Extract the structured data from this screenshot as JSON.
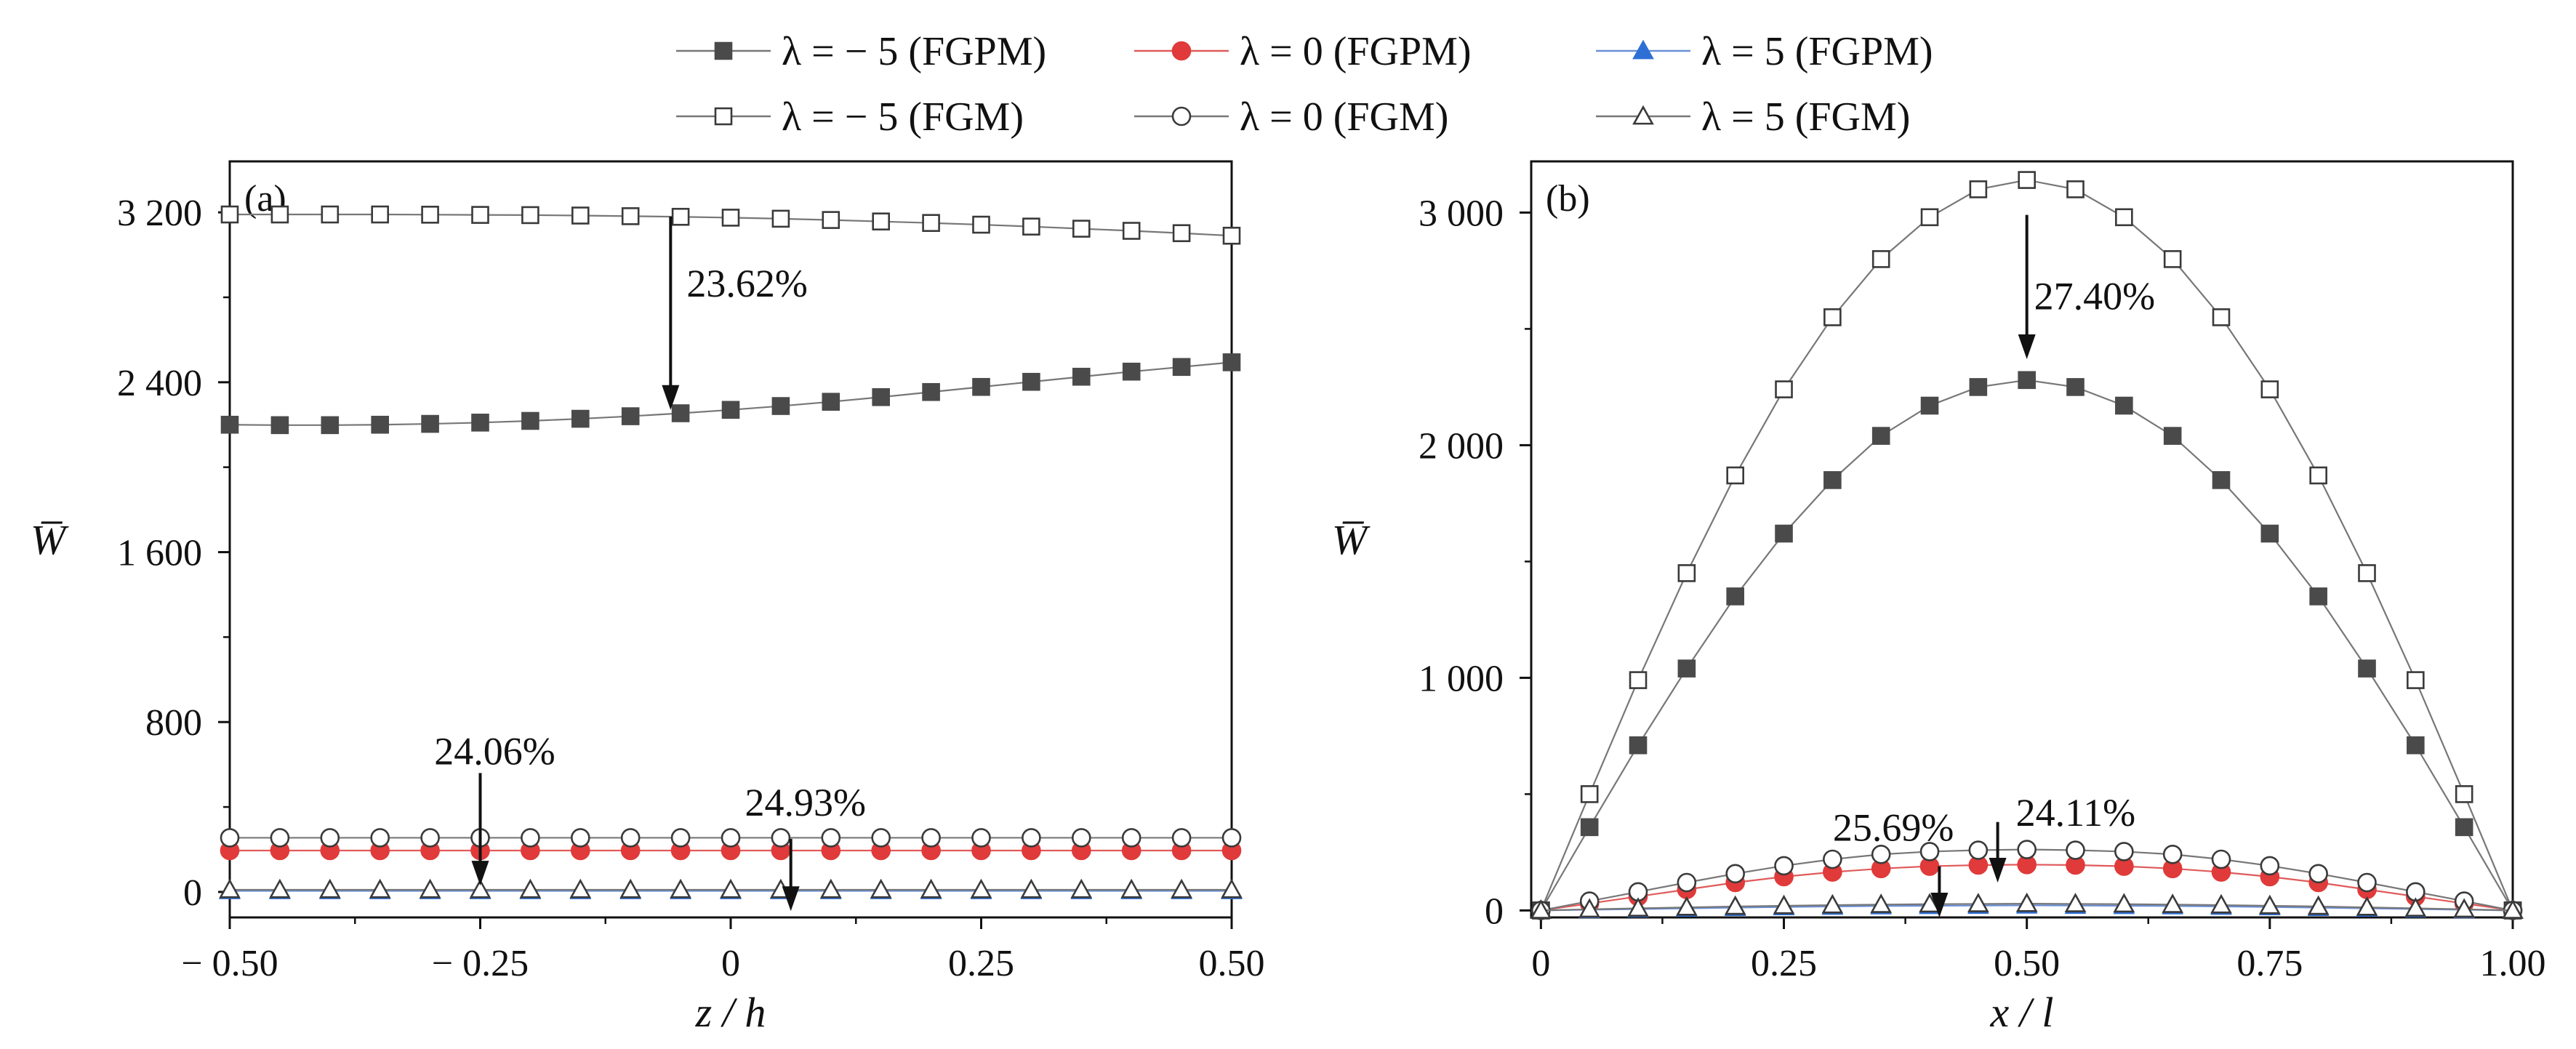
{
  "legend": [
    {
      "label": "λ = − 5 (FGPM)",
      "marker": "square-filled",
      "color": "#4a4a4a"
    },
    {
      "label": "λ = 0 (FGPM)",
      "marker": "circle-filled",
      "color": "#e03a3a"
    },
    {
      "label": "λ = 5 (FGPM)",
      "marker": "triangle-filled",
      "color": "#2e6fd6"
    },
    {
      "label": "λ = − 5 (FGM)",
      "marker": "square-open",
      "color": "#4a4a4a"
    },
    {
      "label": "λ = 0 (FGM)",
      "marker": "circle-open",
      "color": "#4a4a4a"
    },
    {
      "label": "λ = 5 (FGM)",
      "marker": "triangle-open",
      "color": "#4a4a4a"
    }
  ],
  "chart_data": [
    {
      "type": "line",
      "panel_label": "(a)",
      "xlabel": "z / h",
      "ylabel": "W̅",
      "xlim": [
        -0.5,
        0.5
      ],
      "ylim": [
        -120,
        3440
      ],
      "xticks": [
        -0.5,
        -0.25,
        0,
        0.25,
        0.5
      ],
      "xtick_labels": [
        "− 0.50",
        "− 0.25",
        "0",
        "0.25",
        "0.50"
      ],
      "yticks": [
        0,
        800,
        1600,
        2400,
        3200
      ],
      "ytick_labels": [
        "0",
        "800",
        "1 600",
        "2 400",
        "3 200"
      ],
      "x": [
        -0.5,
        -0.45,
        -0.4,
        -0.35,
        -0.3,
        -0.25,
        -0.2,
        -0.15,
        -0.1,
        -0.05,
        0,
        0.05,
        0.1,
        0.15,
        0.2,
        0.25,
        0.3,
        0.35,
        0.4,
        0.45,
        0.5
      ],
      "series": [
        {
          "name": "λ = − 5 (FGPM)",
          "marker": "square-filled",
          "values": [
            2200,
            2198,
            2198,
            2200,
            2204,
            2210,
            2218,
            2228,
            2240,
            2254,
            2270,
            2288,
            2308,
            2330,
            2354,
            2378,
            2402,
            2426,
            2450,
            2472,
            2494
          ]
        },
        {
          "name": "λ = 0 (FGPM)",
          "marker": "circle-filled",
          "values": [
            195,
            195,
            195,
            195,
            195,
            195,
            195,
            195,
            195,
            195,
            195,
            195,
            195,
            195,
            195,
            195,
            195,
            195,
            195,
            195,
            195
          ]
        },
        {
          "name": "λ = 5 (FGPM)",
          "marker": "triangle-filled",
          "values": [
            5,
            5,
            5,
            5,
            5,
            5,
            5,
            5,
            5,
            5,
            5,
            5,
            5,
            5,
            5,
            5,
            5,
            5,
            5,
            5,
            5
          ]
        },
        {
          "name": "λ = − 5 (FGM)",
          "marker": "square-open",
          "values": [
            3190,
            3190,
            3190,
            3190,
            3189,
            3188,
            3187,
            3185,
            3182,
            3179,
            3175,
            3170,
            3164,
            3157,
            3150,
            3142,
            3133,
            3123,
            3113,
            3102,
            3090
          ]
        },
        {
          "name": "λ = 0 (FGM)",
          "marker": "circle-open",
          "values": [
            255,
            255,
            255,
            255,
            255,
            255,
            255,
            255,
            255,
            255,
            255,
            255,
            255,
            255,
            255,
            255,
            255,
            255,
            255,
            255,
            255
          ]
        },
        {
          "name": "λ = 5 (FGM)",
          "marker": "triangle-open",
          "values": [
            10,
            10,
            10,
            10,
            10,
            10,
            10,
            10,
            10,
            10,
            10,
            10,
            10,
            10,
            10,
            10,
            10,
            10,
            10,
            10,
            10
          ]
        }
      ],
      "annotations": [
        {
          "text": "23.62%",
          "x": -0.06,
          "y_from": 3180,
          "y_to": 2270
        },
        {
          "text": "24.06%",
          "x": -0.25,
          "y_from": 560,
          "y_to": 30
        },
        {
          "text": "24.93%",
          "x": 0.06,
          "y_from": 250,
          "y_to": -90
        }
      ]
    },
    {
      "type": "line",
      "panel_label": "(b)",
      "xlabel": "x / l",
      "ylabel": "W̅",
      "xlim": [
        -0.01,
        1.0
      ],
      "ylim": [
        -30,
        3220
      ],
      "xticks": [
        0,
        0.25,
        0.5,
        0.75,
        1.0
      ],
      "xtick_labels": [
        "0",
        "0.25",
        "0.50",
        "0.75",
        "1.00"
      ],
      "yticks": [
        0,
        1000,
        2000,
        3000
      ],
      "ytick_labels": [
        "0",
        "1 000",
        "2 000",
        "3 000"
      ],
      "x": [
        0,
        0.05,
        0.1,
        0.15,
        0.2,
        0.25,
        0.3,
        0.35,
        0.4,
        0.45,
        0.5,
        0.55,
        0.6,
        0.65,
        0.7,
        0.75,
        0.8,
        0.85,
        0.9,
        0.95,
        1.0
      ],
      "series": [
        {
          "name": "λ = − 5 (FGPM)",
          "marker": "square-filled",
          "values": [
            0,
            358,
            710,
            1040,
            1350,
            1620,
            1850,
            2040,
            2170,
            2250,
            2280,
            2250,
            2170,
            2040,
            1850,
            1620,
            1350,
            1040,
            710,
            358,
            0
          ]
        },
        {
          "name": "λ = 0 (FGPM)",
          "marker": "circle-filled",
          "values": [
            0,
            30,
            60,
            90,
            120,
            145,
            165,
            180,
            190,
            195,
            197,
            195,
            190,
            180,
            165,
            145,
            120,
            90,
            60,
            30,
            0
          ]
        },
        {
          "name": "λ = 5 (FGPM)",
          "marker": "triangle-filled",
          "values": [
            0,
            3,
            6,
            9,
            12,
            15,
            17,
            19,
            20,
            21,
            22,
            21,
            20,
            19,
            17,
            15,
            12,
            9,
            6,
            3,
            0
          ]
        },
        {
          "name": "λ = − 5 (FGM)",
          "marker": "square-open",
          "values": [
            0,
            500,
            990,
            1450,
            1870,
            2240,
            2550,
            2800,
            2980,
            3100,
            3140,
            3100,
            2980,
            2800,
            2550,
            2240,
            1870,
            1450,
            990,
            500,
            0
          ]
        },
        {
          "name": "λ = 0 (FGM)",
          "marker": "circle-open",
          "values": [
            0,
            40,
            80,
            120,
            158,
            192,
            220,
            241,
            253,
            259,
            262,
            259,
            253,
            241,
            220,
            192,
            158,
            120,
            80,
            40,
            0
          ]
        },
        {
          "name": "λ = 5 (FGM)",
          "marker": "triangle-open",
          "values": [
            0,
            5,
            9,
            13,
            17,
            20,
            23,
            25,
            27,
            28,
            29,
            28,
            27,
            25,
            23,
            20,
            17,
            13,
            9,
            5,
            0
          ]
        }
      ],
      "annotations": [
        {
          "text": "27.40%",
          "x": 0.5,
          "y_from": 2990,
          "y_to": 2370
        },
        {
          "text": "25.69%",
          "x": 0.41,
          "y_from": 190,
          "y_to": -30
        },
        {
          "text": "24.11%",
          "x": 0.47,
          "y_from": 380,
          "y_to": 120
        }
      ]
    }
  ]
}
